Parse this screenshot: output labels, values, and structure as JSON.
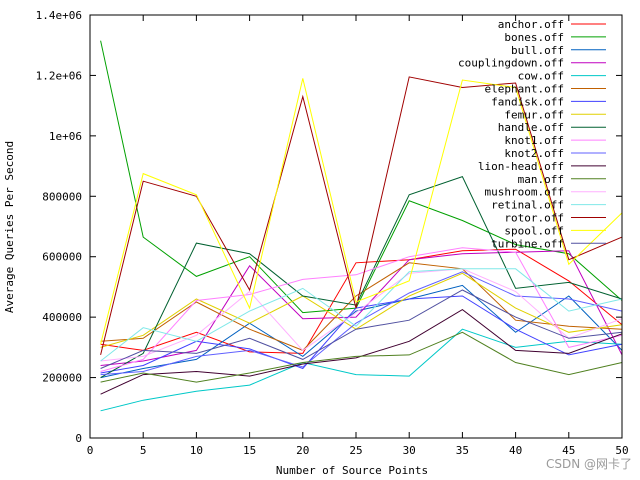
{
  "chart_data": {
    "type": "line",
    "title": "",
    "xlabel": "Number of Source Points",
    "ylabel": "Average Queries Per Second",
    "x": [
      1,
      5,
      10,
      15,
      20,
      25,
      30,
      35,
      40,
      45,
      50
    ],
    "xlim": [
      0,
      50
    ],
    "ylim": [
      0,
      1400000
    ],
    "xticks": [
      0,
      5,
      10,
      15,
      20,
      25,
      30,
      35,
      40,
      45,
      50
    ],
    "yticks": [
      0,
      200000,
      400000,
      600000,
      800000,
      1000000,
      1200000,
      1400000
    ],
    "ytick_labels": [
      "0",
      "200000",
      "400000",
      "600000",
      "800000",
      "1e+06",
      "1.2e+06",
      "1.4e+06"
    ],
    "legend_position": "top-right",
    "series": [
      {
        "name": "anchor.off",
        "color": "#ff0000",
        "values": [
          310000,
          290000,
          350000,
          285000,
          280000,
          580000,
          590000,
          620000,
          625000,
          520000,
          375000
        ]
      },
      {
        "name": "bones.off",
        "color": "#00a000",
        "values": [
          1315000,
          665000,
          535000,
          600000,
          415000,
          430000,
          785000,
          720000,
          640000,
          610000,
          455000
        ]
      },
      {
        "name": "bull.off",
        "color": "#0060c0",
        "values": [
          200000,
          230000,
          260000,
          380000,
          270000,
          420000,
          460000,
          505000,
          350000,
          470000,
          290000
        ]
      },
      {
        "name": "couplingdown.off",
        "color": "#c000c0",
        "values": [
          240000,
          255000,
          290000,
          570000,
          395000,
          400000,
          590000,
          610000,
          615000,
          620000,
          275000
        ]
      },
      {
        "name": "cow.off",
        "color": "#00c8c8",
        "values": [
          90000,
          125000,
          155000,
          175000,
          250000,
          210000,
          205000,
          360000,
          300000,
          320000,
          310000
        ]
      },
      {
        "name": "elephant.off",
        "color": "#c06000",
        "values": [
          320000,
          330000,
          450000,
          360000,
          290000,
          470000,
          580000,
          560000,
          390000,
          370000,
          360000
        ]
      },
      {
        "name": "fandisk.off",
        "color": "#4040ff",
        "values": [
          215000,
          240000,
          320000,
          295000,
          230000,
          430000,
          460000,
          470000,
          360000,
          275000,
          310000
        ]
      },
      {
        "name": "femur.off",
        "color": "#e0d000",
        "values": [
          300000,
          340000,
          460000,
          380000,
          470000,
          360000,
          470000,
          545000,
          430000,
          350000,
          375000
        ]
      },
      {
        "name": "handle.off",
        "color": "#006030",
        "values": [
          200000,
          280000,
          645000,
          610000,
          470000,
          440000,
          805000,
          865000,
          495000,
          515000,
          460000
        ]
      },
      {
        "name": "knot1.off",
        "color": "#ff80ff",
        "values": [
          220000,
          260000,
          455000,
          475000,
          525000,
          540000,
          600000,
          630000,
          615000,
          300000,
          340000
        ]
      },
      {
        "name": "knot2.off",
        "color": "#6060ff",
        "values": [
          210000,
          220000,
          270000,
          290000,
          235000,
          380000,
          480000,
          550000,
          470000,
          460000,
          420000
        ]
      },
      {
        "name": "lion-head.off",
        "color": "#400030",
        "values": [
          145000,
          210000,
          220000,
          205000,
          245000,
          265000,
          320000,
          425000,
          290000,
          280000,
          345000
        ]
      },
      {
        "name": "man.off",
        "color": "#508020",
        "values": [
          185000,
          215000,
          185000,
          215000,
          250000,
          270000,
          275000,
          350000,
          250000,
          210000,
          250000
        ]
      },
      {
        "name": "mushroom.off",
        "color": "#ffb0ff",
        "values": [
          255000,
          270000,
          340000,
          485000,
          290000,
          415000,
          545000,
          560000,
          485000,
          330000,
          395000
        ]
      },
      {
        "name": "retinal.off",
        "color": "#80e8e8",
        "values": [
          255000,
          365000,
          320000,
          420000,
          495000,
          370000,
          550000,
          560000,
          560000,
          420000,
          460000
        ]
      },
      {
        "name": "rotor.off",
        "color": "#a00000",
        "values": [
          275000,
          850000,
          800000,
          490000,
          1130000,
          430000,
          1195000,
          1160000,
          1175000,
          590000,
          665000
        ]
      },
      {
        "name": "spool.off",
        "color": "#ffff00",
        "values": [
          310000,
          875000,
          805000,
          430000,
          1190000,
          450000,
          520000,
          1185000,
          1160000,
          575000,
          745000
        ]
      },
      {
        "name": "turbine.off",
        "color": "#5050a0",
        "values": [
          230000,
          290000,
          280000,
          330000,
          260000,
          360000,
          390000,
          490000,
          400000,
          330000,
          350000
        ]
      }
    ]
  },
  "watermark": "CSDN @网卡了"
}
